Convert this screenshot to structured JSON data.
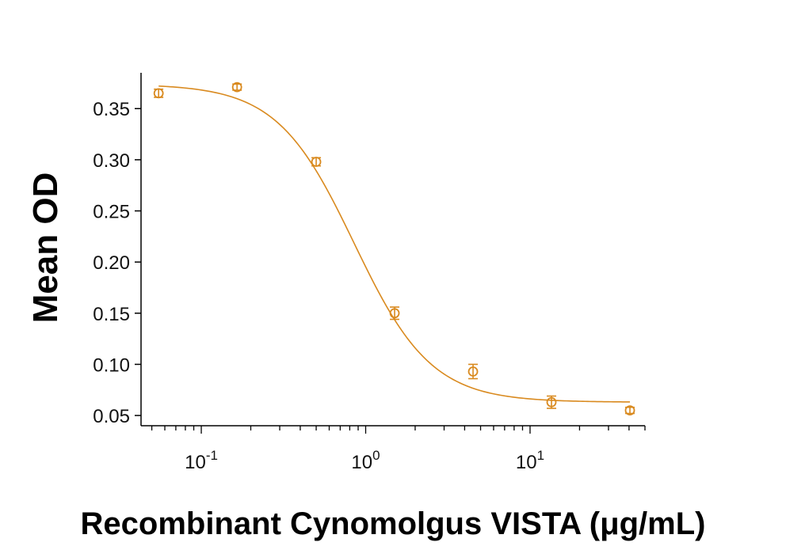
{
  "chart_data": {
    "type": "scatter",
    "title": "",
    "xlabel": "Recombinant Cynomolgus VISTA (μg/mL)",
    "ylabel": "Mean OD",
    "x_scale": "log10",
    "xlim": [
      0.043,
      50
    ],
    "ylim": [
      0.04,
      0.385
    ],
    "y_ticks": [
      "0.05",
      "0.10",
      "0.15",
      "0.20",
      "0.25",
      "0.30",
      "0.35"
    ],
    "x_ticks": [
      {
        "value": 0.1,
        "base": "10",
        "exp": "-1"
      },
      {
        "value": 1,
        "base": "10",
        "exp": "0"
      },
      {
        "value": 10,
        "base": "10",
        "exp": "1"
      }
    ],
    "grid": false,
    "color": "#d98a1f",
    "series": [
      {
        "points": [
          {
            "x": 0.055,
            "y": 0.365,
            "err": 0.004
          },
          {
            "x": 0.165,
            "y": 0.371,
            "err": 0.003
          },
          {
            "x": 0.5,
            "y": 0.298,
            "err": 0.004
          },
          {
            "x": 1.5,
            "y": 0.15,
            "err": 0.006
          },
          {
            "x": 4.5,
            "y": 0.093,
            "err": 0.007
          },
          {
            "x": 13.5,
            "y": 0.063,
            "err": 0.006
          },
          {
            "x": 40.5,
            "y": 0.055,
            "err": 0.003
          }
        ],
        "fit": {
          "model": "4PL",
          "top": 0.374,
          "bottom": 0.063,
          "ec50": 0.85,
          "hill": 1.85
        }
      }
    ]
  }
}
